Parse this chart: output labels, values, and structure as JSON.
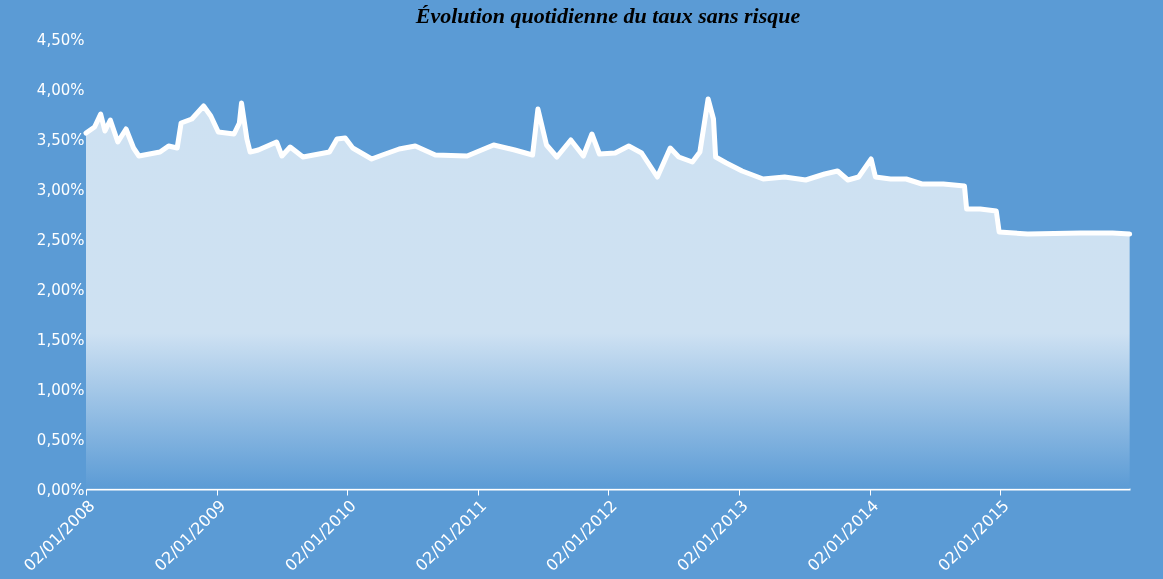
{
  "chart_data": {
    "type": "area",
    "title": "Évolution quotidienne du taux sans risque",
    "x": [
      "2008-01-02",
      "2008-01-26",
      "2008-02-12",
      "2008-02-24",
      "2008-03-10",
      "2008-03-31",
      "2008-04-23",
      "2008-05-14",
      "2008-05-29",
      "2008-07-27",
      "2008-08-20",
      "2008-09-13",
      "2008-09-24",
      "2008-10-24",
      "2008-11-26",
      "2008-12-16",
      "2009-01-06",
      "2009-02-19",
      "2009-03-06",
      "2009-03-12",
      "2009-03-27",
      "2009-04-05",
      "2009-04-28",
      "2009-06-18",
      "2009-07-03",
      "2009-07-26",
      "2009-08-31",
      "2009-11-13",
      "2009-12-04",
      "2009-12-27",
      "2010-01-17",
      "2010-03-11",
      "2010-04-10",
      "2010-05-27",
      "2010-07-11",
      "2010-09-05",
      "2010-12-03",
      "2011-02-15",
      "2011-04-15",
      "2011-06-04",
      "2011-06-19",
      "2011-07-13",
      "2011-08-11",
      "2011-09-19",
      "2011-10-24",
      "2011-11-17",
      "2011-12-08",
      "2012-01-21",
      "2012-02-28",
      "2012-04-04",
      "2012-05-18",
      "2012-06-23",
      "2012-07-17",
      "2012-08-24",
      "2012-09-14",
      "2012-10-07",
      "2012-10-22",
      "2012-10-28",
      "2012-11-27",
      "2013-01-10",
      "2013-03-10",
      "2013-05-09",
      "2013-07-07",
      "2013-08-29",
      "2013-10-04",
      "2013-11-02",
      "2013-12-02",
      "2014-01-06",
      "2014-01-18",
      "2014-03-01",
      "2014-04-14",
      "2014-05-28",
      "2014-07-27",
      "2014-09-24",
      "2014-09-30",
      "2014-11-07",
      "2014-12-22",
      "2014-12-30",
      "2015-03-20",
      "2015-08-15",
      "2015-11-12",
      "2015-12-30"
    ],
    "series": [
      {
        "color": "#ffffff",
        "values": [
          3.56,
          3.62,
          3.75,
          3.58,
          3.69,
          3.47,
          3.6,
          3.41,
          3.33,
          3.37,
          3.43,
          3.41,
          3.66,
          3.7,
          3.83,
          3.73,
          3.57,
          3.55,
          3.66,
          3.86,
          3.5,
          3.37,
          3.39,
          3.47,
          3.33,
          3.42,
          3.32,
          3.37,
          3.5,
          3.51,
          3.41,
          3.3,
          3.34,
          3.4,
          3.43,
          3.34,
          3.33,
          3.44,
          3.39,
          3.34,
          3.8,
          3.44,
          3.32,
          3.49,
          3.33,
          3.55,
          3.35,
          3.36,
          3.43,
          3.36,
          3.12,
          3.41,
          3.32,
          3.27,
          3.37,
          3.9,
          3.7,
          3.32,
          3.26,
          3.18,
          3.1,
          3.12,
          3.09,
          3.15,
          3.18,
          3.09,
          3.12,
          3.3,
          3.12,
          3.1,
          3.1,
          3.05,
          3.05,
          3.03,
          2.8,
          2.8,
          2.78,
          2.57,
          2.55,
          2.56,
          2.56,
          2.55
        ]
      }
    ],
    "xlim": [
      "2008-01-02",
      "2015-12-31"
    ],
    "xticks": [
      {
        "value": "2008-01-02",
        "label": "02/01/2008"
      },
      {
        "value": "2009-01-02",
        "label": "02/01/2009"
      },
      {
        "value": "2010-01-02",
        "label": "02/01/2010"
      },
      {
        "value": "2011-01-02",
        "label": "02/01/2011"
      },
      {
        "value": "2012-01-02",
        "label": "02/01/2012"
      },
      {
        "value": "2013-01-02",
        "label": "02/01/2013"
      },
      {
        "value": "2014-01-02",
        "label": "02/01/2014"
      },
      {
        "value": "2015-01-02",
        "label": "02/01/2015"
      }
    ],
    "ylim": [
      0,
      4.5
    ],
    "yticks": [
      {
        "value": 0,
        "label": "0,00%"
      },
      {
        "value": 0.5,
        "label": "0,50%"
      },
      {
        "value": 1,
        "label": "1,00%"
      },
      {
        "value": 1.5,
        "label": "1,50%"
      },
      {
        "value": 2,
        "label": "2,00%"
      },
      {
        "value": 2.5,
        "label": "2,50%"
      },
      {
        "value": 3,
        "label": "3,00%"
      },
      {
        "value": 3.5,
        "label": "3,50%"
      },
      {
        "value": 4,
        "label": "4,00%"
      },
      {
        "value": 4.5,
        "label": "4,50%"
      }
    ],
    "grid": false
  }
}
